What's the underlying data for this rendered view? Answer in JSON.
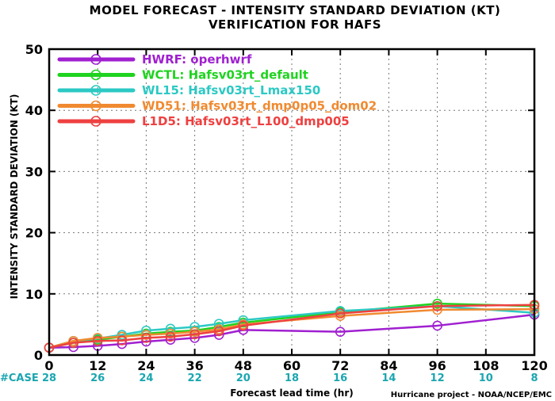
{
  "chart_data": {
    "type": "line",
    "title": "MODEL FORECAST - INTENSITY STANDARD DEVIATION (KT)",
    "subtitle": "VERIFICATION FOR HAFS",
    "xlabel": "Forecast lead time (hr)",
    "ylabel": "INTENSITY STANDARD DEVIATION (KT)",
    "xlim": [
      0,
      120
    ],
    "ylim": [
      0,
      50
    ],
    "x_ticks": [
      0,
      12,
      24,
      36,
      48,
      60,
      72,
      84,
      96,
      108,
      120
    ],
    "y_ticks": [
      0,
      10,
      20,
      30,
      40,
      50
    ],
    "grid": true,
    "legend_position": "top-left",
    "x": [
      0,
      6,
      12,
      18,
      24,
      30,
      36,
      42,
      48,
      72,
      96,
      120
    ],
    "series": [
      {
        "name": "HWRF: operhwrf",
        "color": "#a020d0",
        "values": [
          1.2,
          1.3,
          1.5,
          1.8,
          2.2,
          2.5,
          2.8,
          3.3,
          4.1,
          3.8,
          4.8,
          6.6
        ]
      },
      {
        "name": "WCTL: Hafsv03rt_default",
        "color": "#1fd31f",
        "values": [
          1.2,
          2.0,
          2.5,
          3.0,
          3.5,
          3.8,
          4.0,
          4.6,
          5.3,
          7.0,
          8.4,
          8.0
        ]
      },
      {
        "name": "WL15: Hafsv03rt_Lmax150",
        "color": "#2cc9c4",
        "values": [
          1.2,
          2.3,
          2.7,
          3.3,
          4.0,
          4.3,
          4.6,
          5.1,
          5.7,
          7.2,
          8.0,
          6.9
        ]
      },
      {
        "name": "WD51: Hafsv03rt_dmp0p05_dom02",
        "color": "#f08a30",
        "values": [
          1.2,
          2.3,
          2.8,
          3.0,
          3.3,
          3.5,
          3.8,
          4.2,
          5.0,
          6.4,
          7.4,
          7.5
        ]
      },
      {
        "name": "L1D5: Hafsv03rt_L100_dmp005",
        "color": "#ee4040",
        "values": [
          1.2,
          2.0,
          2.3,
          2.4,
          2.8,
          3.0,
          3.4,
          3.9,
          4.8,
          6.8,
          8.0,
          8.2
        ]
      }
    ],
    "case_label": "#CASE",
    "case_counts": [
      {
        "x": 0,
        "count": "28"
      },
      {
        "x": 12,
        "count": "26"
      },
      {
        "x": 24,
        "count": "24"
      },
      {
        "x": 36,
        "count": "22"
      },
      {
        "x": 48,
        "count": "20"
      },
      {
        "x": 60,
        "count": "18"
      },
      {
        "x": 72,
        "count": "16"
      },
      {
        "x": 84,
        "count": "14"
      },
      {
        "x": 96,
        "count": "12"
      },
      {
        "x": 108,
        "count": "10"
      },
      {
        "x": 120,
        "count": "8"
      }
    ],
    "credit": "Hurricane project - NOAA/NCEP/EMC"
  }
}
